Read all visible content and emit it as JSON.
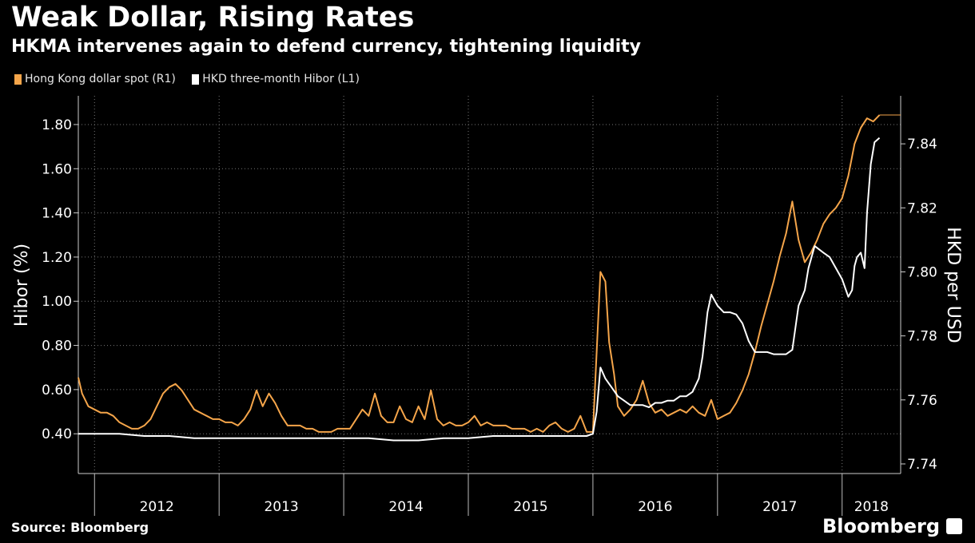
{
  "title": "Weak Dollar, Rising Rates",
  "subtitle": "HKMA intervenes again to defend currency, tightening liquidity",
  "source": "Source: Bloomberg",
  "brand": "Bloomberg",
  "chart_data": {
    "type": "line",
    "grid": true,
    "legend_position": "top-left",
    "ylabel_left": "Hibor (%)",
    "ylabel_right": "HKD per USD",
    "ylim_left": [
      0.22,
      1.93
    ],
    "ylim_right": [
      7.737,
      7.855
    ],
    "yticks_left": [
      "1.80",
      "1.60",
      "1.40",
      "1.20",
      "1.00",
      "0.80",
      "0.60",
      "0.40"
    ],
    "yticks_right": [
      "7.84",
      "7.82",
      "7.80",
      "7.78",
      "7.76",
      "7.74"
    ],
    "xlim": [
      2011.87,
      2018.47
    ],
    "year_labels": [
      "2012",
      "2013",
      "2014",
      "2015",
      "2016",
      "2017",
      "2018"
    ],
    "series": [
      {
        "name": "Hong Kong dollar spot (R1)",
        "axis": "right",
        "color": "#f5a54a",
        "x": [
          2011.87,
          2011.9,
          2011.95,
          2012.0,
          2012.05,
          2012.1,
          2012.15,
          2012.2,
          2012.25,
          2012.3,
          2012.35,
          2012.4,
          2012.45,
          2012.5,
          2012.55,
          2012.6,
          2012.65,
          2012.7,
          2012.75,
          2012.8,
          2012.85,
          2012.9,
          2012.95,
          2013.0,
          2013.05,
          2013.1,
          2013.15,
          2013.2,
          2013.25,
          2013.3,
          2013.35,
          2013.4,
          2013.45,
          2013.5,
          2013.55,
          2013.6,
          2013.65,
          2013.7,
          2013.75,
          2013.8,
          2013.85,
          2013.9,
          2013.95,
          2014.0,
          2014.05,
          2014.1,
          2014.15,
          2014.2,
          2014.25,
          2014.3,
          2014.35,
          2014.4,
          2014.45,
          2014.5,
          2014.55,
          2014.6,
          2014.65,
          2014.7,
          2014.75,
          2014.8,
          2014.85,
          2014.9,
          2014.95,
          2015.0,
          2015.05,
          2015.1,
          2015.15,
          2015.2,
          2015.25,
          2015.3,
          2015.35,
          2015.4,
          2015.45,
          2015.5,
          2015.55,
          2015.6,
          2015.65,
          2015.7,
          2015.75,
          2015.8,
          2015.85,
          2015.9,
          2015.95,
          2016.0,
          2016.03,
          2016.06,
          2016.1,
          2016.13,
          2016.17,
          2016.2,
          2016.25,
          2016.3,
          2016.35,
          2016.4,
          2016.45,
          2016.5,
          2016.55,
          2016.6,
          2016.65,
          2016.7,
          2016.75,
          2016.8,
          2016.85,
          2016.9,
          2016.95,
          2017.0,
          2017.05,
          2017.1,
          2017.15,
          2017.2,
          2017.25,
          2017.3,
          2017.35,
          2017.4,
          2017.45,
          2017.5,
          2017.55,
          2017.6,
          2017.65,
          2017.7,
          2017.75,
          2017.8,
          2017.85,
          2017.9,
          2017.95,
          2018.0,
          2018.05,
          2018.1,
          2018.15,
          2018.2,
          2018.25,
          2018.3
        ],
        "values": [
          7.767,
          7.762,
          7.758,
          7.757,
          7.756,
          7.756,
          7.755,
          7.753,
          7.752,
          7.751,
          7.751,
          7.752,
          7.754,
          7.758,
          7.762,
          7.764,
          7.765,
          7.763,
          7.76,
          7.757,
          7.756,
          7.755,
          7.754,
          7.754,
          7.753,
          7.753,
          7.752,
          7.754,
          7.757,
          7.763,
          7.758,
          7.762,
          7.759,
          7.755,
          7.752,
          7.752,
          7.752,
          7.751,
          7.751,
          7.75,
          7.75,
          7.75,
          7.751,
          7.751,
          7.751,
          7.754,
          7.757,
          7.755,
          7.762,
          7.755,
          7.753,
          7.753,
          7.758,
          7.754,
          7.753,
          7.758,
          7.754,
          7.763,
          7.754,
          7.752,
          7.753,
          7.752,
          7.752,
          7.753,
          7.755,
          7.752,
          7.753,
          7.752,
          7.752,
          7.752,
          7.751,
          7.751,
          7.751,
          7.75,
          7.751,
          7.75,
          7.752,
          7.753,
          7.751,
          7.75,
          7.751,
          7.755,
          7.75,
          7.75,
          7.775,
          7.8,
          7.797,
          7.778,
          7.768,
          7.758,
          7.755,
          7.757,
          7.76,
          7.766,
          7.759,
          7.756,
          7.757,
          7.755,
          7.756,
          7.757,
          7.756,
          7.758,
          7.756,
          7.755,
          7.76,
          7.754,
          7.755,
          7.756,
          7.759,
          7.763,
          7.768,
          7.775,
          7.783,
          7.79,
          7.797,
          7.805,
          7.812,
          7.822,
          7.81,
          7.803,
          7.806,
          7.81,
          7.815,
          7.818,
          7.82,
          7.823,
          7.83,
          7.84,
          7.845,
          7.848,
          7.847,
          7.849
        ]
      },
      {
        "name": "HKD three-month Hibor (L1)",
        "axis": "left",
        "color": "#ffffff",
        "x": [
          2011.87,
          2012.0,
          2012.2,
          2012.4,
          2012.6,
          2012.8,
          2013.0,
          2013.2,
          2013.4,
          2013.6,
          2013.8,
          2014.0,
          2014.2,
          2014.4,
          2014.6,
          2014.8,
          2015.0,
          2015.2,
          2015.4,
          2015.6,
          2015.8,
          2015.95,
          2016.0,
          2016.03,
          2016.06,
          2016.1,
          2016.15,
          2016.2,
          2016.25,
          2016.3,
          2016.35,
          2016.4,
          2016.45,
          2016.5,
          2016.55,
          2016.6,
          2016.65,
          2016.7,
          2016.75,
          2016.8,
          2016.85,
          2016.88,
          2016.92,
          2016.95,
          2017.0,
          2017.05,
          2017.1,
          2017.15,
          2017.2,
          2017.25,
          2017.3,
          2017.35,
          2017.4,
          2017.45,
          2017.5,
          2017.55,
          2017.6,
          2017.65,
          2017.7,
          2017.73,
          2017.78,
          2017.85,
          2017.9,
          2017.95,
          2018.0,
          2018.05,
          2018.08,
          2018.1,
          2018.12,
          2018.15,
          2018.18,
          2018.2,
          2018.23,
          2018.26,
          2018.3
        ],
        "values": [
          0.4,
          0.4,
          0.4,
          0.39,
          0.39,
          0.38,
          0.38,
          0.38,
          0.38,
          0.38,
          0.38,
          0.38,
          0.38,
          0.37,
          0.37,
          0.38,
          0.38,
          0.39,
          0.39,
          0.39,
          0.39,
          0.39,
          0.4,
          0.5,
          0.7,
          0.65,
          0.61,
          0.57,
          0.55,
          0.53,
          0.53,
          0.53,
          0.52,
          0.54,
          0.54,
          0.55,
          0.55,
          0.57,
          0.57,
          0.59,
          0.65,
          0.75,
          0.95,
          1.03,
          0.98,
          0.95,
          0.95,
          0.94,
          0.9,
          0.82,
          0.77,
          0.77,
          0.77,
          0.76,
          0.76,
          0.76,
          0.78,
          0.98,
          1.05,
          1.15,
          1.25,
          1.22,
          1.2,
          1.15,
          1.1,
          1.02,
          1.05,
          1.16,
          1.2,
          1.22,
          1.15,
          1.4,
          1.62,
          1.72,
          1.74
        ]
      }
    ]
  }
}
